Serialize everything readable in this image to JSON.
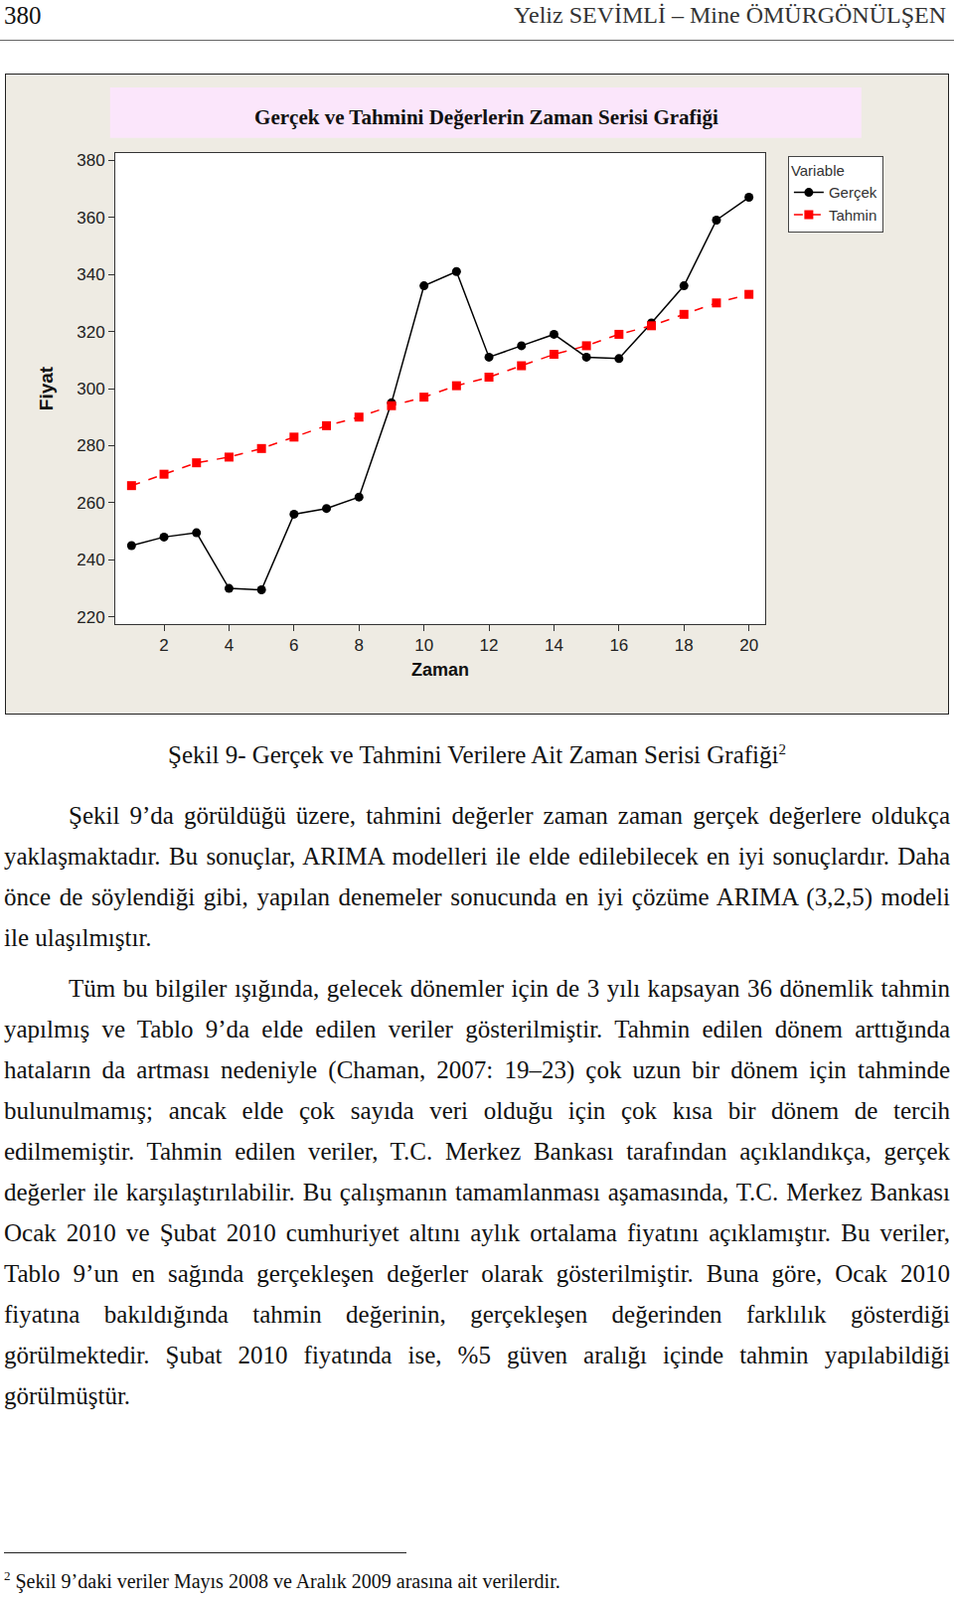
{
  "header": {
    "page": "380",
    "authors": "Yeliz SEVİMLİ – Mine ÖMÜRGÖNÜLŞEN"
  },
  "chart_data": {
    "type": "line",
    "title": "Gerçek ve Tahmini Değerlerin Zaman Serisi Grafiği",
    "x_label": "Zaman",
    "y_label": "Fiyat",
    "legend_title": "Variable",
    "x": [
      1,
      2,
      3,
      4,
      5,
      6,
      7,
      8,
      9,
      10,
      11,
      12,
      13,
      14,
      15,
      16,
      17,
      18,
      19,
      20
    ],
    "series": [
      {
        "name": "Gerçek",
        "color": "#000000",
        "marker": "circle",
        "line_style": "solid",
        "values": [
          245,
          248,
          249.5,
          230,
          229.5,
          256,
          258,
          262,
          295,
          336,
          341,
          311,
          315,
          319,
          311,
          310.5,
          323,
          336,
          359,
          367
        ]
      },
      {
        "name": "Tahmin",
        "color": "#ff0000",
        "marker": "square",
        "line_style": "dash",
        "values": [
          266,
          270,
          274,
          276,
          279,
          283,
          287,
          290,
          294,
          297,
          301,
          304,
          308,
          312,
          315,
          319,
          322,
          326,
          330,
          333
        ]
      }
    ],
    "xlim": [
      0.5,
      20.5
    ],
    "ylim": [
      217.5,
      382.5
    ],
    "xticks": [
      2,
      4,
      6,
      8,
      10,
      12,
      14,
      16,
      18,
      20
    ],
    "yticks": [
      220,
      240,
      260,
      280,
      300,
      320,
      340,
      360,
      380
    ],
    "grid": false,
    "legend": "top right"
  },
  "caption": {
    "text": "Şekil 9- Gerçek ve Tahmini Verilere Ait Zaman Serisi Grafiği",
    "note": "2"
  },
  "paragraphs": [
    "Şekil 9’da görüldüğü üzere, tahmini değerler zaman zaman gerçek değerlere oldukça yaklaşmaktadır. Bu sonuçlar, ARIMA modelleri ile elde edilebilecek en iyi sonuçlardır. Daha önce de söylendiği gibi, yapılan denemeler sonucunda en iyi çözüme ARIMA (3,2,5) modeli ile ulaşılmıştır.",
    "Tüm bu bilgiler ışığında, gelecek dönemler için de 3 yılı kapsayan 36 dönemlik tahmin yapılmış ve Tablo 9’da elde edilen veriler gösterilmiştir. Tahmin edilen dönem arttığında hataların da artması nedeniyle (Chaman, 2007: 19–23) çok uzun bir dönem için tahminde bulunulmamış; ancak elde çok sayıda veri olduğu için çok kısa bir dönem de tercih edilmemiştir. Tahmin edilen veriler, T.C. Merkez Bankası tarafından açıklandıkça, gerçek değerler ile karşılaştırılabilir. Bu çalışmanın tamamlanması aşamasında, T.C. Merkez Bankası Ocak 2010 ve Şubat 2010 cumhuriyet altını aylık ortalama fiyatını açıklamıştır. Bu veriler, Tablo 9’un en sağında gerçekleşen değerler olarak gösterilmiştir. Buna göre, Ocak 2010 fiyatına bakıldığında tahmin değerinin, gerçekleşen değerinden farklılık gösterdiği görülmektedir. Şubat 2010 fiyatında ise, %5 güven aralığı içinde tahmin yapılabildiği görülmüştür."
  ],
  "footnote": {
    "mark": "2",
    "text": "Şekil 9’daki veriler Mayıs 2008 ve Aralık 2009 arasına ait verilerdir."
  }
}
